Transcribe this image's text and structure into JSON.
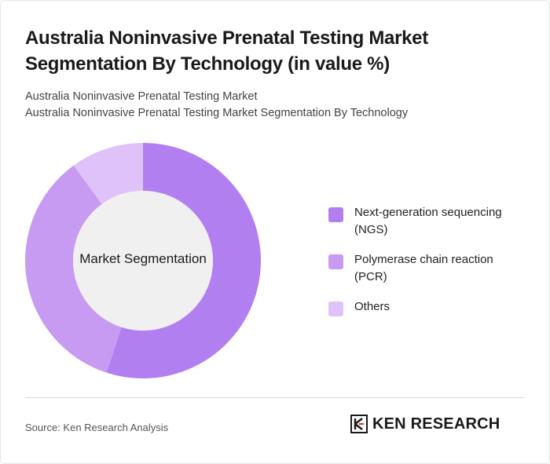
{
  "header": {
    "title": "Australia Noninvasive Prenatal Testing Market Segmentation By Technology (in value %)",
    "subtitle_line1": "Australia Noninvasive Prenatal Testing Market",
    "subtitle_line2": "Australia Noninvasive Prenatal Testing Market Segmentation By Technology"
  },
  "chart_data": {
    "type": "pie",
    "center_label": "Market Segmentation",
    "categories": [
      "Next-generation sequencing (NGS)",
      "Polymerase chain reaction (PCR)",
      "Others"
    ],
    "values": [
      55,
      35,
      10
    ],
    "colors": [
      "#b27ff0",
      "#c89bf2",
      "#dfc3f8"
    ],
    "legend_position": "right"
  },
  "footer": {
    "source": "Source: Ken Research Analysis",
    "logo_text": "KEN RESEARCH"
  }
}
